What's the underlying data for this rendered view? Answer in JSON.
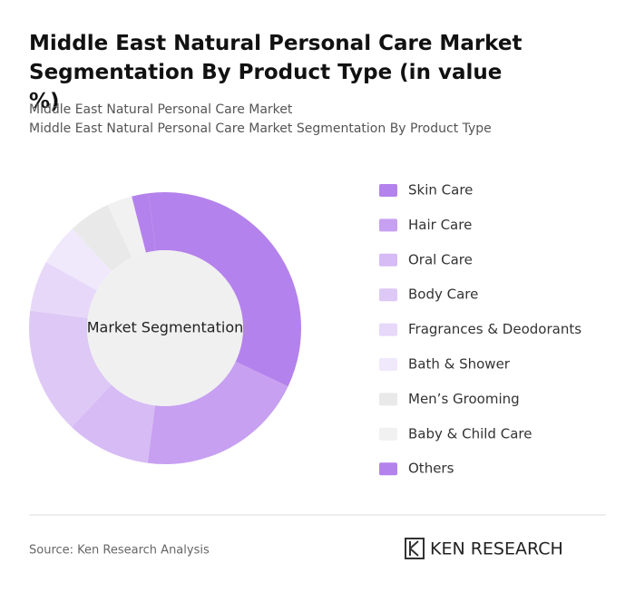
{
  "chart_data": {
    "type": "donut",
    "title": "Middle East Natural Personal Care Market Segmentation By Product Type (in value %)",
    "subtitle": [
      "Middle East Natural Personal Care Market",
      "Middle East Natural Personal Care Market Segmentation By Product Type"
    ],
    "center_label": "Market Segmentation",
    "categories": [
      "Skin Care",
      "Hair Care",
      "Oral Care",
      "Body Care",
      "Fragrances & Deodorants",
      "Bath & Shower",
      "Men’s Grooming",
      "Baby & Child Care",
      "Others"
    ],
    "values": [
      34,
      20,
      10,
      15,
      6,
      5,
      5,
      3,
      2
    ],
    "colors": [
      "#b482ec",
      "#c7a0f1",
      "#d6bbf5",
      "#ddc8f6",
      "#e7d8f9",
      "#f0e8fb",
      "#e9e9e9",
      "#f1f1f1",
      "#b482ec"
    ],
    "source": "Source: Ken Research Analysis",
    "brand": "KEN RESEARCH"
  }
}
